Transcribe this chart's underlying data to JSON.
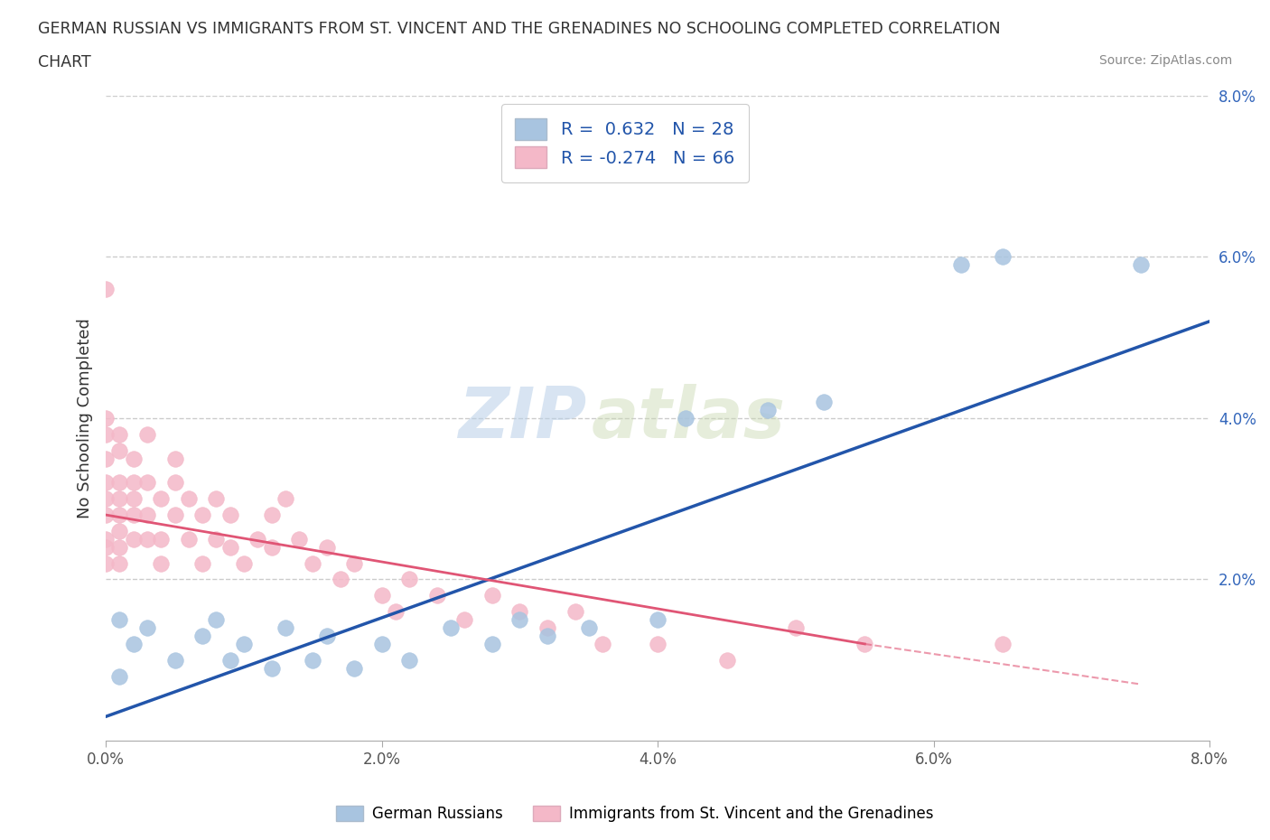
{
  "title_line1": "GERMAN RUSSIAN VS IMMIGRANTS FROM ST. VINCENT AND THE GRENADINES NO SCHOOLING COMPLETED CORRELATION",
  "title_line2": "CHART",
  "source": "Source: ZipAtlas.com",
  "ylabel": "No Schooling Completed",
  "xmin": 0.0,
  "xmax": 0.08,
  "ymin": 0.0,
  "ymax": 0.08,
  "xticks": [
    0.0,
    0.02,
    0.04,
    0.06,
    0.08
  ],
  "yticks": [
    0.02,
    0.04,
    0.06,
    0.08
  ],
  "xticklabels": [
    "0.0%",
    "2.0%",
    "4.0%",
    "6.0%",
    "8.0%"
  ],
  "yticklabels": [
    "2.0%",
    "4.0%",
    "6.0%",
    "8.0%"
  ],
  "grid_color": "#cccccc",
  "watermark_zip": "ZIP",
  "watermark_atlas": "atlas",
  "blue_R": 0.632,
  "blue_N": 28,
  "pink_R": -0.274,
  "pink_N": 66,
  "blue_color": "#a8c4e0",
  "pink_color": "#f4b8c8",
  "blue_line_color": "#2255aa",
  "pink_line_color": "#e05575",
  "legend_label_blue": "German Russians",
  "legend_label_pink": "Immigrants from St. Vincent and the Grenadines",
  "blue_x": [
    0.001,
    0.001,
    0.002,
    0.003,
    0.005,
    0.007,
    0.008,
    0.009,
    0.01,
    0.012,
    0.013,
    0.015,
    0.016,
    0.018,
    0.02,
    0.022,
    0.025,
    0.028,
    0.03,
    0.032,
    0.035,
    0.04,
    0.042,
    0.048,
    0.052,
    0.062,
    0.065,
    0.075
  ],
  "blue_y": [
    0.008,
    0.015,
    0.012,
    0.014,
    0.01,
    0.013,
    0.015,
    0.01,
    0.012,
    0.009,
    0.014,
    0.01,
    0.013,
    0.009,
    0.012,
    0.01,
    0.014,
    0.012,
    0.015,
    0.013,
    0.014,
    0.015,
    0.04,
    0.041,
    0.042,
    0.059,
    0.06,
    0.059
  ],
  "pink_x": [
    0.0,
    0.0,
    0.0,
    0.0,
    0.0,
    0.0,
    0.0,
    0.0,
    0.0,
    0.001,
    0.001,
    0.001,
    0.001,
    0.001,
    0.001,
    0.001,
    0.001,
    0.002,
    0.002,
    0.002,
    0.002,
    0.002,
    0.003,
    0.003,
    0.003,
    0.003,
    0.004,
    0.004,
    0.004,
    0.005,
    0.005,
    0.005,
    0.006,
    0.006,
    0.007,
    0.007,
    0.008,
    0.008,
    0.009,
    0.009,
    0.01,
    0.011,
    0.012,
    0.012,
    0.013,
    0.014,
    0.015,
    0.016,
    0.017,
    0.018,
    0.02,
    0.021,
    0.022,
    0.024,
    0.026,
    0.028,
    0.03,
    0.032,
    0.034,
    0.036,
    0.04,
    0.045,
    0.05,
    0.055,
    0.065,
    0.0
  ],
  "pink_y": [
    0.025,
    0.03,
    0.028,
    0.032,
    0.024,
    0.022,
    0.035,
    0.038,
    0.056,
    0.026,
    0.03,
    0.028,
    0.024,
    0.022,
    0.038,
    0.032,
    0.036,
    0.025,
    0.03,
    0.035,
    0.028,
    0.032,
    0.025,
    0.038,
    0.028,
    0.032,
    0.025,
    0.022,
    0.03,
    0.028,
    0.032,
    0.035,
    0.025,
    0.03,
    0.028,
    0.022,
    0.025,
    0.03,
    0.024,
    0.028,
    0.022,
    0.025,
    0.028,
    0.024,
    0.03,
    0.025,
    0.022,
    0.024,
    0.02,
    0.022,
    0.018,
    0.016,
    0.02,
    0.018,
    0.015,
    0.018,
    0.016,
    0.014,
    0.016,
    0.012,
    0.012,
    0.01,
    0.014,
    0.012,
    0.012,
    0.04
  ],
  "blue_line_x": [
    0.0,
    0.08
  ],
  "blue_line_y": [
    0.003,
    0.052
  ],
  "pink_line_x": [
    0.0,
    0.055
  ],
  "pink_line_y": [
    0.028,
    0.012
  ]
}
